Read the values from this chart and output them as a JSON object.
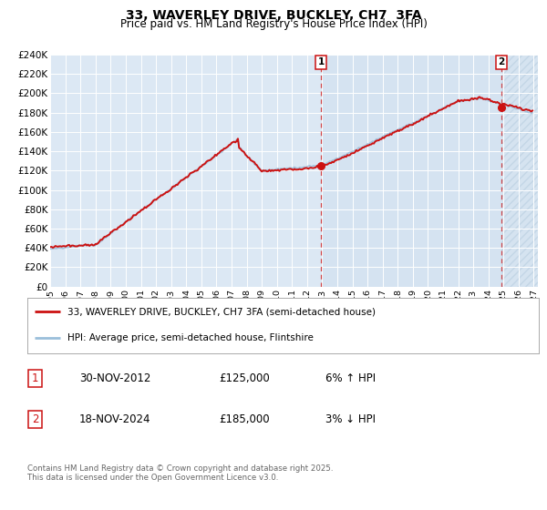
{
  "title": "33, WAVERLEY DRIVE, BUCKLEY, CH7  3FA",
  "subtitle": "Price paid vs. HM Land Registry's House Price Index (HPI)",
  "ylim": [
    0,
    240000
  ],
  "yticks": [
    0,
    20000,
    40000,
    60000,
    80000,
    100000,
    120000,
    140000,
    160000,
    180000,
    200000,
    220000,
    240000
  ],
  "year_start": 1995,
  "year_end": 2027,
  "hpi_color": "#9bbfda",
  "price_color": "#cc1111",
  "plot_bg": "#dce8f4",
  "grid_color": "#ffffff",
  "transaction1_year": 2012.917,
  "transaction1_price": 125000,
  "transaction2_year": 2024.875,
  "transaction2_price": 185000,
  "legend_line1": "33, WAVERLEY DRIVE, BUCKLEY, CH7 3FA (semi-detached house)",
  "legend_line2": "HPI: Average price, semi-detached house, Flintshire",
  "table_row1_num": "1",
  "table_row1_date": "30-NOV-2012",
  "table_row1_price": "£125,000",
  "table_row1_hpi": "6% ↑ HPI",
  "table_row2_num": "2",
  "table_row2_date": "18-NOV-2024",
  "table_row2_price": "£185,000",
  "table_row2_hpi": "3% ↓ HPI",
  "footer": "Contains HM Land Registry data © Crown copyright and database right 2025.\nThis data is licensed under the Open Government Licence v3.0."
}
